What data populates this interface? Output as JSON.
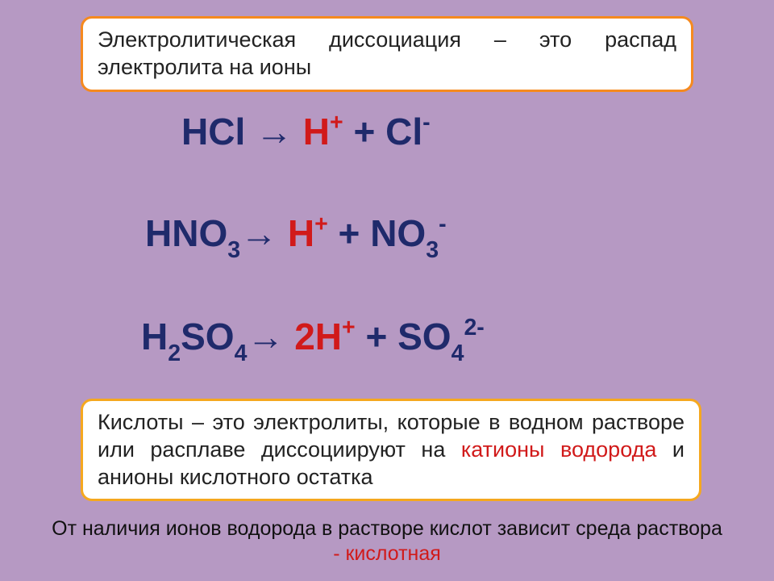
{
  "colors": {
    "background": "#b699c3",
    "box_bg": "#ffffff",
    "box1_border": "#f58a1f",
    "box2_border": "#f5a81f",
    "eq_main": "#1f2a6b",
    "h_ion": "#d11a1a",
    "footer_text": "#111111"
  },
  "typography": {
    "def_fontsize": 27,
    "eq_fontsize": 46,
    "footer_fontsize": 25,
    "font_family": "Arial"
  },
  "box1": {
    "text_before": "Электролитическая диссоциация",
    "text_after": " – это распад электролита на ионы"
  },
  "eq1": {
    "lhs": "HCl",
    "arrow": " → ",
    "h": "H",
    "h_sup": "+",
    "plus": " + ",
    "anion": "Cl",
    "anion_sup": "-"
  },
  "eq2": {
    "lhs_base": "HNO",
    "lhs_sub": "3",
    "arrow": "→ ",
    "h": "H",
    "h_sup": "+",
    "plus": " +  ",
    "anion_base": "NO",
    "anion_sub": "3",
    "anion_sup": "-"
  },
  "eq3": {
    "lhs_h": "H",
    "lhs_hsub": "2",
    "lhs_rest": "SO",
    "lhs_sub": "4",
    "arrow": "→ ",
    "h_coef": "2H",
    "h_sup": "+",
    "plus": " + ",
    "anion_base": "SO",
    "anion_sub": "4",
    "anion_sup": "2-"
  },
  "box2": {
    "text1": "Кислоты – это электролиты, которые в водном растворе или расплаве диссоциируют на ",
    "kation": "катионы водорода",
    "text2": " и анионы кислотного остатка"
  },
  "footer": {
    "line1": "От наличия ионов водорода в растворе кислот зависит среда раствора",
    "line2": "- кислотная"
  }
}
